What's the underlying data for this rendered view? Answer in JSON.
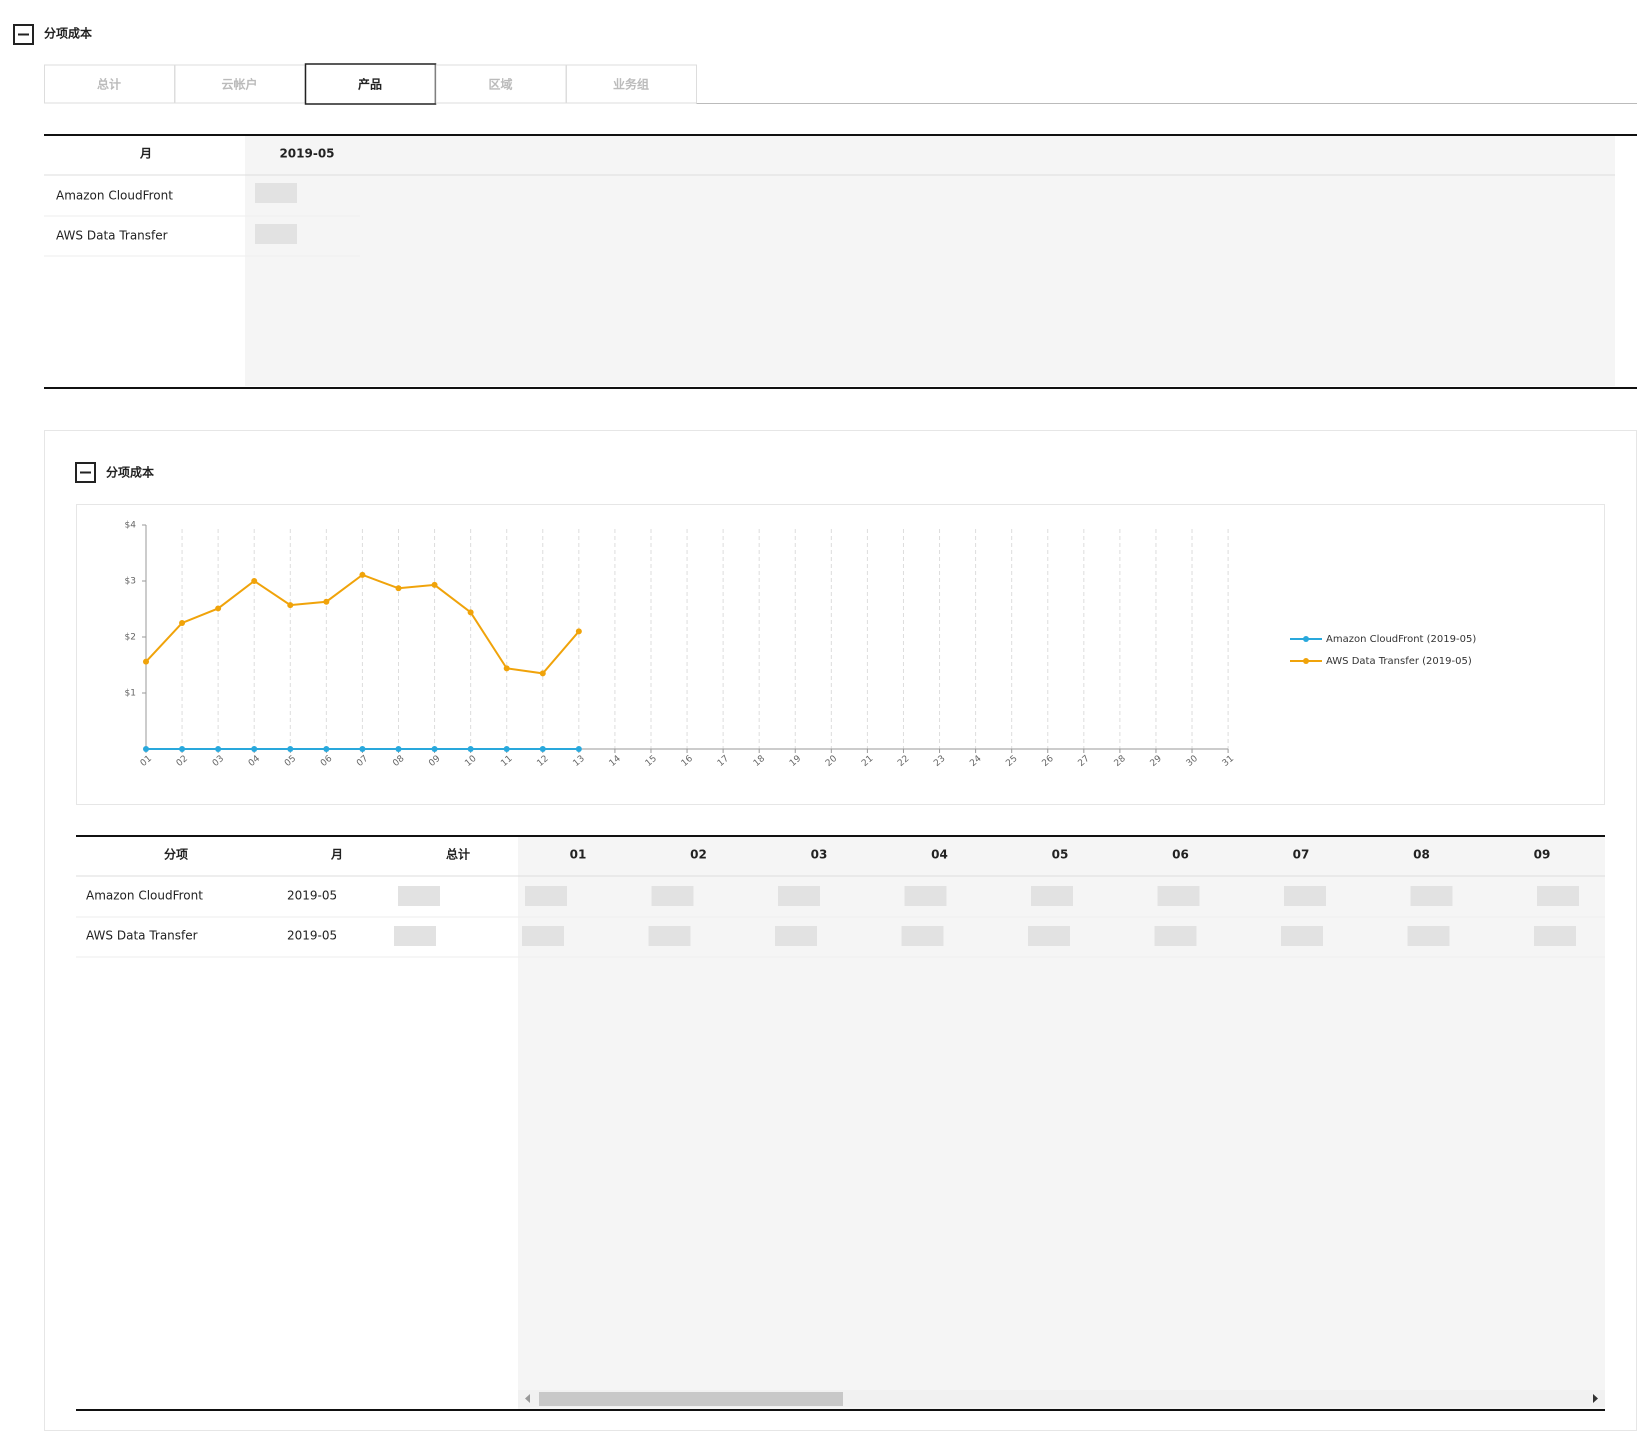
{
  "header": {
    "title": "分项成本"
  },
  "tabs": {
    "items": [
      "总计",
      "云帐户",
      "产品",
      "区域",
      "业务组"
    ],
    "active": 2
  },
  "summary_table": {
    "headers": [
      "月",
      "2019-05"
    ],
    "rows": [
      [
        "Amazon CloudFront"
      ],
      [
        "AWS Data Transfer"
      ]
    ]
  },
  "panel": {
    "title": "分项成本"
  },
  "chart_data": {
    "type": "line",
    "categories": [
      "01",
      "02",
      "03",
      "04",
      "05",
      "06",
      "07",
      "08",
      "09",
      "10",
      "11",
      "12",
      "13",
      "14",
      "15",
      "16",
      "17",
      "18",
      "19",
      "20",
      "21",
      "22",
      "23",
      "24",
      "25",
      "26",
      "27",
      "28",
      "29",
      "30",
      "31"
    ],
    "series": [
      {
        "name": "Amazon CloudFront (2019-05)",
        "color": "#29a8dc",
        "values": [
          0,
          0,
          0,
          0,
          0,
          0,
          0,
          0,
          0,
          0,
          0,
          0,
          0,
          null,
          null,
          null,
          null,
          null,
          null,
          null,
          null,
          null,
          null,
          null,
          null,
          null,
          null,
          null,
          null,
          null,
          null
        ]
      },
      {
        "name": "AWS Data Transfer (2019-05)",
        "color": "#f0a30a",
        "values": [
          1.56,
          2.25,
          2.51,
          3.0,
          2.57,
          2.63,
          3.11,
          2.87,
          2.93,
          2.44,
          1.44,
          1.35,
          2.1,
          null,
          null,
          null,
          null,
          null,
          null,
          null,
          null,
          null,
          null,
          null,
          null,
          null,
          null,
          null,
          null,
          null,
          null
        ]
      }
    ],
    "ylim": [
      0,
      4
    ],
    "yticks": [
      {
        "value": 1,
        "label": "$1"
      },
      {
        "value": 2,
        "label": "$2"
      },
      {
        "value": 3,
        "label": "$3"
      },
      {
        "value": 4,
        "label": "$4"
      }
    ],
    "grid": true,
    "legend": "right"
  },
  "detail_table": {
    "headers": [
      "分项",
      "月",
      "总计",
      "01",
      "02",
      "03",
      "04",
      "05",
      "06",
      "07",
      "08",
      "09"
    ],
    "rows": [
      [
        "Amazon CloudFront",
        "2019-05"
      ],
      [
        "AWS Data Transfer",
        "2019-05"
      ]
    ]
  }
}
